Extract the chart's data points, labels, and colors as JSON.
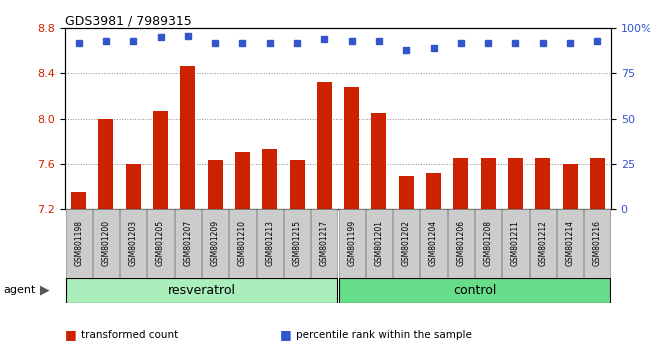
{
  "title": "GDS3981 / 7989315",
  "samples": [
    "GSM801198",
    "GSM801200",
    "GSM801203",
    "GSM801205",
    "GSM801207",
    "GSM801209",
    "GSM801210",
    "GSM801213",
    "GSM801215",
    "GSM801217",
    "GSM801199",
    "GSM801201",
    "GSM801202",
    "GSM801204",
    "GSM801206",
    "GSM801208",
    "GSM801211",
    "GSM801212",
    "GSM801214",
    "GSM801216"
  ],
  "bar_values": [
    7.35,
    8.0,
    7.6,
    8.07,
    8.47,
    7.63,
    7.7,
    7.73,
    7.63,
    8.32,
    8.28,
    8.05,
    7.49,
    7.52,
    7.65,
    7.65,
    7.65,
    7.65,
    7.6,
    7.65
  ],
  "percentile_values": [
    92,
    93,
    93,
    95,
    96,
    92,
    92,
    92,
    92,
    94,
    93,
    93,
    88,
    89,
    92,
    92,
    92,
    92,
    92,
    93
  ],
  "bar_color": "#cc2200",
  "dot_color": "#3355cc",
  "ylim_left": [
    7.2,
    8.8
  ],
  "ylim_right": [
    0,
    100
  ],
  "yticks_left": [
    7.2,
    7.6,
    8.0,
    8.4,
    8.8
  ],
  "yticks_right": [
    0,
    25,
    50,
    75,
    100
  ],
  "ytick_labels_right": [
    "0",
    "25",
    "50",
    "75",
    "100%"
  ],
  "groups": [
    {
      "label": "resveratrol",
      "start": 0,
      "end": 9,
      "color": "#aaeebb"
    },
    {
      "label": "control",
      "start": 10,
      "end": 19,
      "color": "#66dd88"
    }
  ],
  "agent_label": "agent",
  "legend_items": [
    {
      "color": "#cc2200",
      "label": "transformed count"
    },
    {
      "color": "#3355cc",
      "label": "percentile rank within the sample"
    }
  ],
  "grid_color": "#888888",
  "bar_bottom": 7.2,
  "bar_width": 0.55
}
